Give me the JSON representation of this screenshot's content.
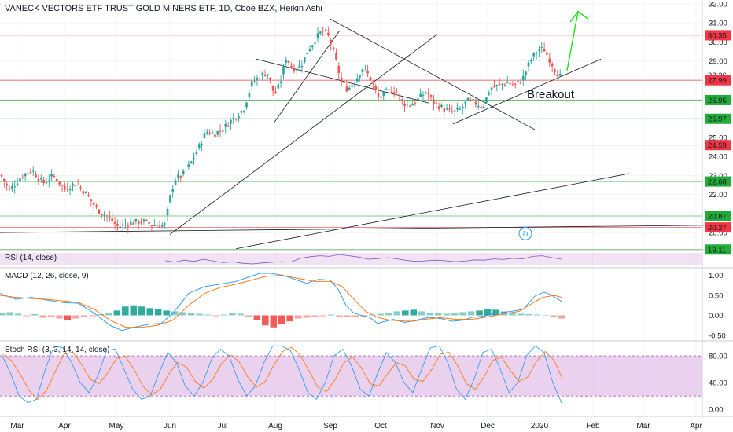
{
  "header": {
    "title": "VANECK VECTORS ETF TRUST GOLD MINERS ETF, 1D, Cboe BZX, Heikin Ashi"
  },
  "panels": {
    "rsi_label": "RSI (14, close)",
    "macd_label": "MACD (12, 26, close, 9)",
    "stoch_label": "Stoch RSI (3, 3, 14, 14, close)"
  },
  "annotations": {
    "breakout": "Breakout",
    "marker": "D"
  },
  "colors": {
    "up": "#26a69a",
    "down": "#ef5350",
    "hline_red": "#ef5350",
    "hline_green": "#4caf50",
    "badge_red": "#f23645",
    "badge_green": "#22ab38",
    "arrow": "#00e600",
    "macd": "#2196f3",
    "signal": "#ff6d00",
    "stoch_fill": "#e1bee7"
  },
  "chart_data": [
    {
      "type": "candlestick",
      "title": "VANECK VECTORS ETF TRUST GOLD MINERS ETF, 1D, Cboe BZX, Heikin Ashi",
      "x_ticks": [
        "Mar",
        "Apr",
        "May",
        "Jun",
        "Jul",
        "Aug",
        "Sep",
        "Oct",
        "Nov",
        "Dec",
        "2020",
        "Feb",
        "Mar",
        "Apr"
      ],
      "y_ticks": [
        20.0,
        21.0,
        22.0,
        23.0,
        24.0,
        25.0,
        26.0,
        27.0,
        28.0,
        29.0,
        30.0,
        31.0,
        32.0
      ],
      "ylim": [
        19.1,
        32.2
      ],
      "price_trace": [
        [
          0,
          23.1
        ],
        [
          12,
          22.2
        ],
        [
          26,
          22.9
        ],
        [
          40,
          23.3
        ],
        [
          55,
          22.6
        ],
        [
          68,
          23.0
        ],
        [
          82,
          22.3
        ],
        [
          97,
          22.6
        ],
        [
          110,
          22.0
        ],
        [
          124,
          21.2
        ],
        [
          138,
          20.8
        ],
        [
          150,
          20.3
        ],
        [
          165,
          20.5
        ],
        [
          180,
          20.6
        ],
        [
          195,
          20.4
        ],
        [
          210,
          20.4
        ],
        [
          216,
          21.8
        ],
        [
          222,
          22.8
        ],
        [
          232,
          23.0
        ],
        [
          242,
          23.6
        ],
        [
          252,
          24.4
        ],
        [
          262,
          25.3
        ],
        [
          274,
          25.2
        ],
        [
          285,
          25.5
        ],
        [
          297,
          26.0
        ],
        [
          310,
          26.5
        ],
        [
          320,
          27.8
        ],
        [
          330,
          28.2
        ],
        [
          340,
          28.4
        ],
        [
          349,
          27.2
        ],
        [
          356,
          27.8
        ],
        [
          364,
          29.2
        ],
        [
          372,
          28.6
        ],
        [
          382,
          28.7
        ],
        [
          392,
          29.6
        ],
        [
          402,
          30.2
        ],
        [
          410,
          30.6
        ],
        [
          418,
          30.3
        ],
        [
          426,
          29.2
        ],
        [
          434,
          27.9
        ],
        [
          442,
          27.5
        ],
        [
          452,
          28.0
        ],
        [
          462,
          28.7
        ],
        [
          472,
          28.0
        ],
        [
          482,
          27.0
        ],
        [
          492,
          27.4
        ],
        [
          502,
          27.5
        ],
        [
          512,
          26.8
        ],
        [
          522,
          26.7
        ],
        [
          532,
          27.0
        ],
        [
          542,
          27.4
        ],
        [
          552,
          26.8
        ],
        [
          564,
          26.5
        ],
        [
          574,
          26.3
        ],
        [
          584,
          26.4
        ],
        [
          594,
          26.9
        ],
        [
          604,
          26.8
        ],
        [
          614,
          26.6
        ],
        [
          624,
          27.6
        ],
        [
          634,
          27.7
        ],
        [
          644,
          27.9
        ],
        [
          654,
          27.7
        ],
        [
          664,
          28.0
        ],
        [
          674,
          29.0
        ],
        [
          684,
          29.6
        ],
        [
          692,
          29.6
        ],
        [
          700,
          29.0
        ],
        [
          708,
          28.4
        ],
        [
          714,
          28.1
        ]
      ],
      "horizontal_levels": [
        {
          "label": "30.35",
          "value": 30.35,
          "color": "red"
        },
        {
          "label": "28.26",
          "value": 28.26,
          "color": "none"
        },
        {
          "label": "27.99",
          "value": 27.99,
          "color": "red"
        },
        {
          "label": "26.95",
          "value": 26.95,
          "color": "green"
        },
        {
          "label": "25.97",
          "value": 25.97,
          "color": "green"
        },
        {
          "label": "24.59",
          "value": 24.59,
          "color": "red"
        },
        {
          "label": "22.68",
          "value": 22.68,
          "color": "green"
        },
        {
          "label": "20.87",
          "value": 20.87,
          "color": "green"
        },
        {
          "label": "20.27",
          "value": 20.27,
          "color": "red"
        },
        {
          "label": "19.11",
          "value": 19.11,
          "color": "green"
        }
      ],
      "trendlines": [
        {
          "from": [
            0,
            20.0
          ],
          "to": [
            932,
            20.4
          ]
        },
        {
          "from": [
            300,
            19.15
          ],
          "to": [
            800,
            23.1
          ]
        },
        {
          "from": [
            216,
            19.9
          ],
          "to": [
            556,
            30.4
          ]
        },
        {
          "from": [
            349,
            25.8
          ],
          "to": [
            432,
            30.6
          ]
        },
        {
          "from": [
            326,
            29.1
          ],
          "to": [
            545,
            26.8
          ]
        },
        {
          "from": [
            420,
            31.2
          ],
          "to": [
            680,
            25.4
          ]
        },
        {
          "from": [
            576,
            25.7
          ],
          "to": [
            764,
            29.1
          ]
        }
      ],
      "annotations": [
        "Breakout",
        "D"
      ]
    },
    {
      "type": "line",
      "name": "RSI (14, close)",
      "values": [
        50,
        46,
        52,
        48,
        55,
        49,
        44,
        47,
        42,
        40,
        43,
        45,
        47,
        46,
        58,
        63,
        66,
        64,
        70,
        66,
        62,
        55,
        57,
        60,
        56,
        51,
        48,
        50,
        52,
        50,
        47,
        49,
        53,
        52,
        56,
        54,
        58,
        56,
        64,
        66,
        60,
        55
      ]
    },
    {
      "type": "line",
      "name": "MACD (12, 26, close, 9)",
      "y_ticks": [
        -0.5,
        0.0,
        0.5,
        1.0
      ],
      "ylim": [
        -0.6,
        1.15
      ],
      "series": [
        {
          "name": "macd",
          "points": [
            [
              0,
              0.55
            ],
            [
              20,
              0.4
            ],
            [
              40,
              0.45
            ],
            [
              60,
              0.38
            ],
            [
              80,
              0.32
            ],
            [
              100,
              0.3
            ],
            [
              120,
              0.05
            ],
            [
              140,
              -0.25
            ],
            [
              155,
              -0.38
            ],
            [
              170,
              -0.3
            ],
            [
              190,
              -0.22
            ],
            [
              205,
              -0.2
            ],
            [
              220,
              0.05
            ],
            [
              240,
              0.55
            ],
            [
              260,
              0.72
            ],
            [
              280,
              0.78
            ],
            [
              300,
              0.85
            ],
            [
              315,
              0.95
            ],
            [
              330,
              1.05
            ],
            [
              345,
              1.05
            ],
            [
              360,
              1.0
            ],
            [
              375,
              0.9
            ],
            [
              390,
              0.8
            ],
            [
              405,
              0.9
            ],
            [
              420,
              0.88
            ],
            [
              430,
              0.65
            ],
            [
              440,
              0.25
            ],
            [
              450,
              0.05
            ],
            [
              460,
              0.0
            ],
            [
              470,
              -0.05
            ],
            [
              480,
              -0.2
            ],
            [
              490,
              -0.15
            ],
            [
              500,
              -0.1
            ],
            [
              515,
              -0.18
            ],
            [
              530,
              -0.12
            ],
            [
              545,
              -0.05
            ],
            [
              560,
              -0.08
            ],
            [
              575,
              -0.15
            ],
            [
              590,
              -0.12
            ],
            [
              600,
              -0.05
            ],
            [
              615,
              -0.02
            ],
            [
              630,
              0.05
            ],
            [
              650,
              0.1
            ],
            [
              665,
              0.15
            ],
            [
              680,
              0.48
            ],
            [
              692,
              0.58
            ],
            [
              700,
              0.52
            ],
            [
              714,
              0.35
            ]
          ]
        },
        {
          "name": "signal",
          "points": [
            [
              0,
              0.5
            ],
            [
              20,
              0.45
            ],
            [
              40,
              0.42
            ],
            [
              60,
              0.4
            ],
            [
              80,
              0.36
            ],
            [
              100,
              0.32
            ],
            [
              120,
              0.15
            ],
            [
              140,
              -0.12
            ],
            [
              160,
              -0.3
            ],
            [
              180,
              -0.3
            ],
            [
              200,
              -0.25
            ],
            [
              220,
              -0.12
            ],
            [
              240,
              0.25
            ],
            [
              260,
              0.55
            ],
            [
              280,
              0.7
            ],
            [
              300,
              0.78
            ],
            [
              320,
              0.88
            ],
            [
              340,
              0.98
            ],
            [
              360,
              1.0
            ],
            [
              380,
              0.92
            ],
            [
              400,
              0.85
            ],
            [
              420,
              0.85
            ],
            [
              435,
              0.72
            ],
            [
              450,
              0.4
            ],
            [
              465,
              0.1
            ],
            [
              480,
              -0.05
            ],
            [
              495,
              -0.12
            ],
            [
              510,
              -0.14
            ],
            [
              525,
              -0.15
            ],
            [
              540,
              -0.1
            ],
            [
              560,
              -0.06
            ],
            [
              580,
              -0.1
            ],
            [
              600,
              -0.1
            ],
            [
              620,
              -0.04
            ],
            [
              640,
              0.04
            ],
            [
              660,
              0.1
            ],
            [
              675,
              0.28
            ],
            [
              690,
              0.45
            ],
            [
              705,
              0.5
            ],
            [
              714,
              0.45
            ]
          ]
        }
      ],
      "histogram": [
        0.05,
        0.08,
        0.04,
        -0.02,
        0.03,
        -0.06,
        -0.04,
        -0.08,
        -0.12,
        -0.08,
        -0.04,
        -0.02,
        0.03,
        0.05,
        0.12,
        0.22,
        0.25,
        0.22,
        0.18,
        0.15,
        0.12,
        0.1,
        0.08,
        0.06,
        0.04,
        0.02,
        -0.02,
        0.02,
        0.05,
        0.04,
        -0.05,
        -0.12,
        -0.25,
        -0.3,
        -0.22,
        -0.15,
        -0.08,
        -0.06,
        -0.04,
        -0.02,
        0.02,
        -0.03,
        -0.04,
        -0.05,
        -0.03,
        0.02,
        0.04,
        0.06,
        0.1,
        0.12,
        0.14,
        0.1,
        0.07,
        0.05,
        0.04,
        0.06,
        0.08,
        0.1,
        0.12,
        0.15,
        0.14,
        0.1,
        0.06,
        0.04,
        0.03,
        0.02,
        0.0,
        -0.04,
        -0.08
      ]
    },
    {
      "type": "line",
      "name": "Stoch RSI (3, 3, 14, 14, close)",
      "y_ticks": [
        0.0,
        40.0,
        80.0
      ],
      "ylim": [
        -8,
        100
      ],
      "band": [
        20,
        80
      ],
      "k_values": [
        82,
        55,
        20,
        10,
        15,
        60,
        95,
        92,
        70,
        40,
        25,
        50,
        88,
        90,
        60,
        30,
        15,
        20,
        55,
        85,
        70,
        35,
        20,
        40,
        75,
        90,
        80,
        45,
        20,
        35,
        70,
        95,
        95,
        88,
        60,
        25,
        15,
        40,
        80,
        90,
        65,
        30,
        20,
        55,
        85,
        70,
        40,
        25,
        60,
        92,
        95,
        70,
        30,
        15,
        45,
        85,
        90,
        60,
        25,
        40,
        80,
        95,
        85,
        40,
        10
      ]
    }
  ]
}
